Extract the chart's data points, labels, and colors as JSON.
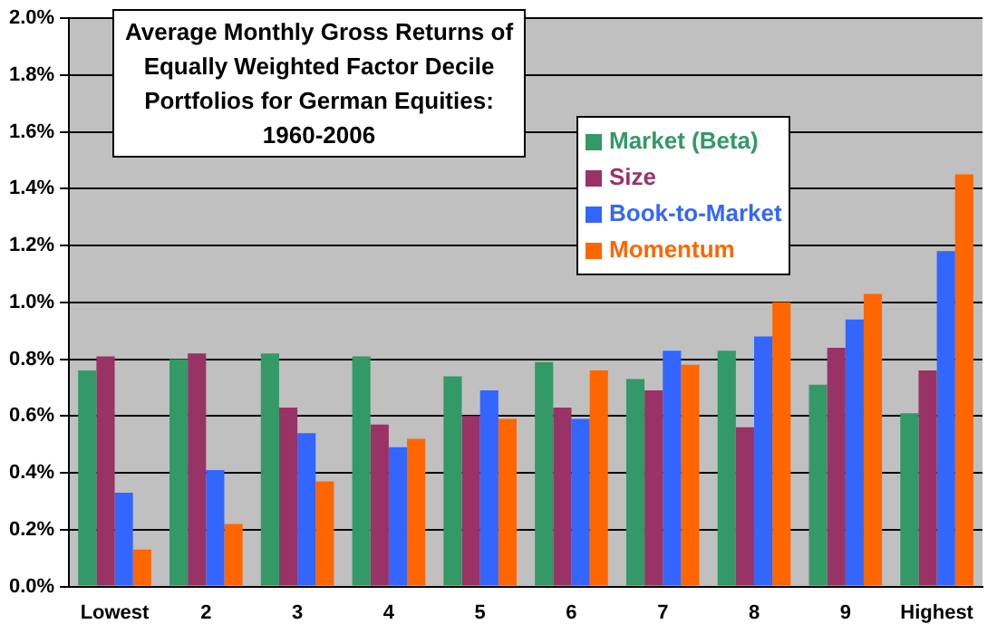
{
  "chart_data": {
    "type": "bar",
    "title": "Average Monthly Gross Returns of Equally Weighted Factor Decile Portfolios for German Equities: 1960-2006",
    "categories": [
      "Lowest",
      "2",
      "3",
      "4",
      "5",
      "6",
      "7",
      "8",
      "9",
      "Highest"
    ],
    "series": [
      {
        "name": "Market (Beta)",
        "color": "#339966",
        "values": [
          0.76,
          0.8,
          0.82,
          0.81,
          0.74,
          0.79,
          0.73,
          0.83,
          0.71,
          0.61
        ]
      },
      {
        "name": "Size",
        "color": "#993366",
        "values": [
          0.81,
          0.82,
          0.63,
          0.57,
          0.6,
          0.63,
          0.69,
          0.56,
          0.84,
          0.76
        ]
      },
      {
        "name": "Book-to-Market",
        "color": "#3366ff",
        "values": [
          0.33,
          0.41,
          0.54,
          0.49,
          0.69,
          0.59,
          0.83,
          0.88,
          0.94,
          1.18
        ]
      },
      {
        "name": "Momentum",
        "color": "#ff6600",
        "values": [
          0.13,
          0.22,
          0.37,
          0.52,
          0.59,
          0.76,
          0.78,
          1.0,
          1.03,
          1.45
        ]
      }
    ],
    "ylim": [
      0,
      2
    ],
    "yticks": [
      {
        "value": 0,
        "label": "0.0%"
      },
      {
        "value": 0.2,
        "label": "0.2%"
      },
      {
        "value": 0.4,
        "label": "0.4%"
      },
      {
        "value": 0.6,
        "label": "0.6%"
      },
      {
        "value": 0.8,
        "label": "0.8%"
      },
      {
        "value": 1,
        "label": "1.0%"
      },
      {
        "value": 1.2,
        "label": "1.2%"
      },
      {
        "value": 1.4,
        "label": "1.4%"
      },
      {
        "value": 1.6,
        "label": "1.6%"
      },
      {
        "value": 1.8,
        "label": "1.8%"
      },
      {
        "value": 2,
        "label": "2.0%"
      }
    ],
    "grid": "y",
    "legend": "top right"
  }
}
